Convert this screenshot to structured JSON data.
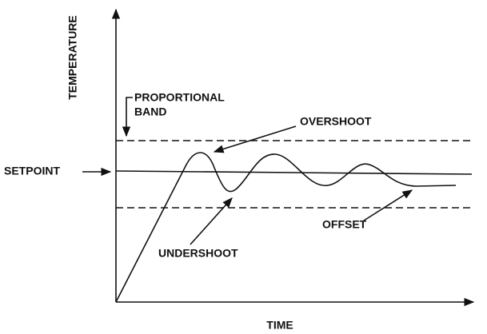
{
  "axes": {
    "y_label": "TEMPERATURE",
    "x_label": "TIME"
  },
  "labels": {
    "proportional_band": [
      "PROPORTIONAL",
      "BAND"
    ],
    "overshoot": "OVERSHOOT",
    "setpoint": "SETPOINT",
    "undershoot": "UNDERSHOOT",
    "offset": "OFFSET"
  }
}
